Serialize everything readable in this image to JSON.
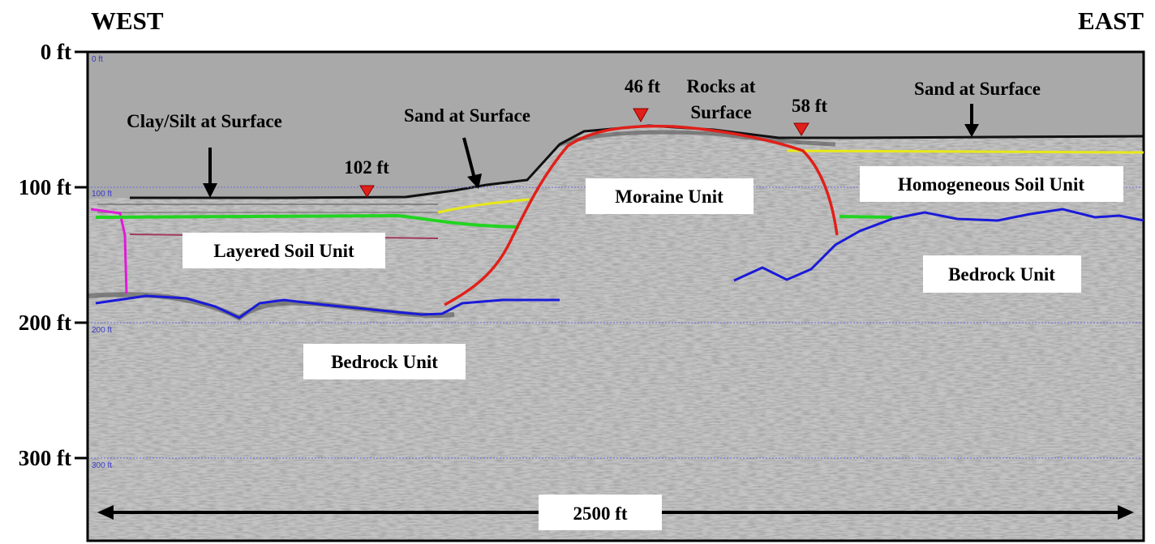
{
  "header": {
    "west": "WEST",
    "east": "EAST"
  },
  "depth_axis": {
    "ticks": [
      "0 ft",
      "100 ft",
      "200 ft",
      "300 ft"
    ],
    "grid_labels": [
      "0 ft",
      "100 ft",
      "200 ft",
      "300 ft"
    ]
  },
  "annotations": {
    "clay_silt": "Clay/Silt at Surface",
    "sand_mid": "Sand at Surface",
    "rocks_1": "Rocks at",
    "rocks_2": "Surface",
    "sand_east": "Sand at Surface",
    "depth_102": "102 ft",
    "depth_46": "46 ft",
    "depth_58": "58 ft"
  },
  "units": {
    "layered_soil": "Layered Soil Unit",
    "bedrock_west": "Bedrock Unit",
    "moraine": "Moraine Unit",
    "homogeneous_soil": "Homogeneous Soil Unit",
    "bedrock_east": "Bedrock Unit"
  },
  "scale_bar": {
    "label": "2500 ft"
  },
  "colors": {
    "sky": "#a9a9a9",
    "moraine_boundary": "#e0201a",
    "bedrock_boundary": "#1a1ad8",
    "layer_green": "#22d422",
    "layer_yellow": "#e8e81a",
    "layer_magenta": "#e01ad8",
    "layer_maroon": "#a03a5a",
    "marker": "#e0201a"
  }
}
